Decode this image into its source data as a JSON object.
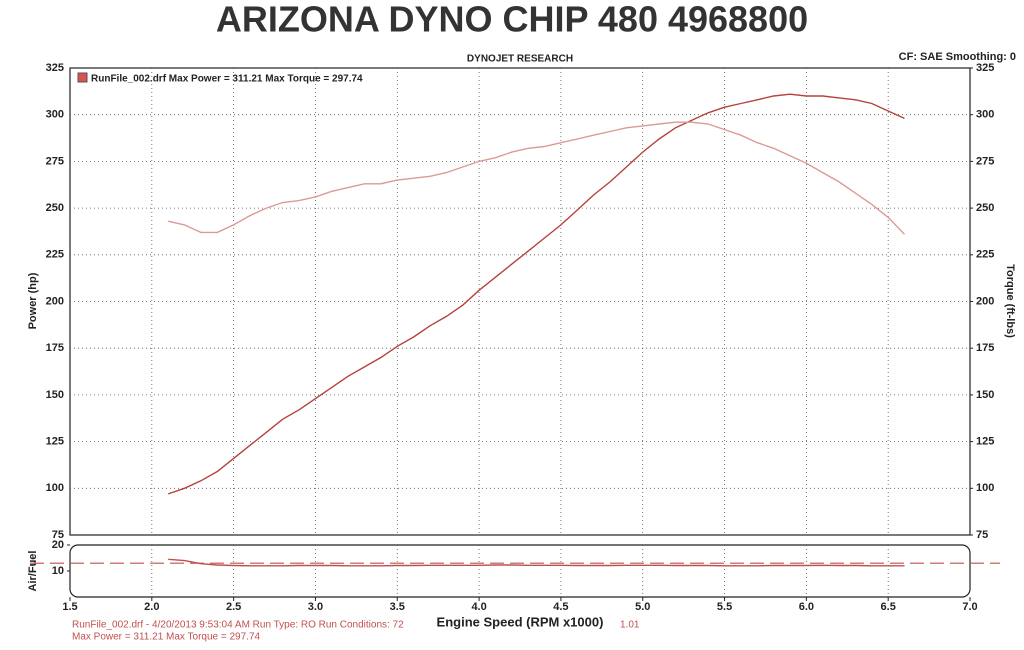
{
  "chart_data": [
    {
      "type": "line",
      "title": "ARIZONA DYNO CHIP 480 4968800",
      "subtitle": "DYNOJET RESEARCH",
      "settings_text": "CF: SAE  Smoothing: 0",
      "legend": "RunFile_002.drf Max Power = 311.21    Max Torque = 297.74",
      "ylabel": "Power (hp)",
      "y2label": "Torque (ft-lbs)",
      "footer": [
        "RunFile_002.drf - 4/20/2013 9:53:04 AM  Run Type: RO  Run Conditions: 72",
        "1.01",
        "Max Power = 311.21  Max Torque = 297.74"
      ],
      "grid": true,
      "ylim": [
        75,
        325
      ],
      "yticks": [
        75,
        100,
        125,
        150,
        175,
        200,
        225,
        250,
        275,
        300,
        325
      ],
      "y2lim": [
        75,
        325
      ],
      "y2ticks": [
        75,
        100,
        125,
        150,
        175,
        200,
        225,
        250,
        275,
        300,
        325
      ],
      "x": [
        2.1,
        2.2,
        2.3,
        2.4,
        2.5,
        2.6,
        2.7,
        2.8,
        2.9,
        3.0,
        3.1,
        3.2,
        3.3,
        3.4,
        3.5,
        3.6,
        3.7,
        3.8,
        3.9,
        4.0,
        4.1,
        4.2,
        4.3,
        4.4,
        4.5,
        4.6,
        4.7,
        4.8,
        4.9,
        5.0,
        5.1,
        5.2,
        5.3,
        5.4,
        5.5,
        5.6,
        5.7,
        5.8,
        5.9,
        6.0,
        6.1,
        6.2,
        6.3,
        6.4,
        6.5,
        6.6
      ],
      "series": [
        {
          "color": "#b5423d",
          "values": [
            97,
            100,
            104,
            109,
            116,
            123,
            130,
            137,
            142,
            148,
            154,
            160,
            165,
            170,
            176,
            181,
            187,
            192,
            198,
            206,
            213,
            220,
            227,
            234,
            241,
            249,
            257,
            264,
            272,
            280,
            287,
            293,
            297,
            301,
            304,
            306,
            308,
            310,
            311,
            310,
            310,
            309,
            308,
            306,
            302,
            298
          ]
        },
        {
          "color": "#dc9a95",
          "axis": "y2",
          "values": [
            243,
            241,
            237,
            237,
            241,
            246,
            250,
            253,
            254,
            256,
            259,
            261,
            263,
            263,
            265,
            266,
            267,
            269,
            272,
            275,
            277,
            280,
            282,
            283,
            285,
            287,
            289,
            291,
            293,
            294,
            295,
            296,
            296,
            295,
            292,
            289,
            285,
            282,
            278,
            274,
            269,
            264,
            258,
            252,
            245,
            236
          ]
        }
      ]
    },
    {
      "type": "line",
      "ylabel": "Air/Fuel",
      "xlabel": "Engine Speed (RPM x1000)",
      "ylim": [
        0,
        20
      ],
      "yticks": [
        10,
        20
      ],
      "xlim": [
        1.5,
        7.0
      ],
      "xticks": [
        1.5,
        {
          "value": 2,
          "label": "2.0"
        },
        2.5,
        {
          "value": 3,
          "label": "3.0"
        },
        3.5,
        {
          "value": 4,
          "label": "4.0"
        },
        4.5,
        {
          "value": 5,
          "label": "5.0"
        },
        5.5,
        {
          "value": 6,
          "label": "6.0"
        },
        6.5,
        {
          "value": 7,
          "label": "7.0"
        }
      ],
      "target": 13,
      "target_color": "#c0504d",
      "x": [
        2.1,
        2.2,
        2.3,
        2.4,
        2.5,
        2.6,
        2.7,
        2.8,
        2.9,
        3.0,
        3.1,
        3.2,
        3.3,
        3.4,
        3.5,
        3.6,
        3.7,
        3.8,
        3.9,
        4.0,
        4.1,
        4.2,
        4.3,
        4.4,
        4.5,
        4.6,
        4.7,
        4.8,
        4.9,
        5.0,
        5.1,
        5.2,
        5.3,
        5.4,
        5.5,
        5.6,
        5.7,
        5.8,
        5.9,
        6.0,
        6.1,
        6.2,
        6.3,
        6.4,
        6.5,
        6.6
      ],
      "series": [
        {
          "color": "#c0504d",
          "values": [
            14.5,
            14,
            12.8,
            12.3,
            12.1,
            12,
            12,
            12,
            12.1,
            12.1,
            12.1,
            12,
            12,
            12,
            12.1,
            12.1,
            12.2,
            12.2,
            12.2,
            12.2,
            12.3,
            12.3,
            12.2,
            12.2,
            12.2,
            12.1,
            12.1,
            12.1,
            12.2,
            12.2,
            12.2,
            12.1,
            12.1,
            12.1,
            12,
            12,
            12,
            12.1,
            12.1,
            12.1,
            12.2,
            12.1,
            12.1,
            12,
            12,
            12
          ]
        }
      ]
    }
  ]
}
